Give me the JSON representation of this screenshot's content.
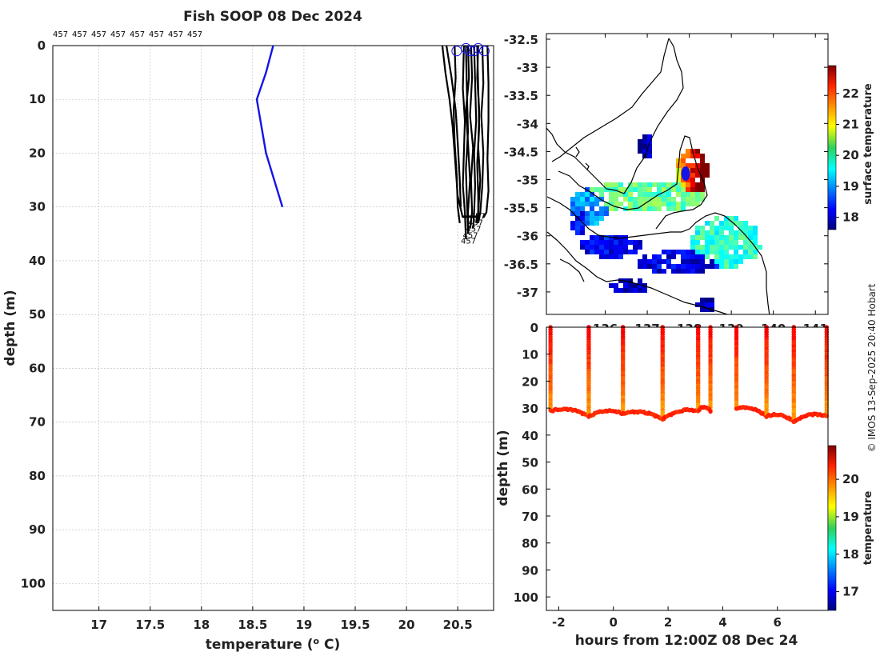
{
  "colors": {
    "profile_blue": "#1414e6",
    "profile_black": "#000000",
    "point_red": "#b81e0c"
  },
  "chart_data": [
    {
      "type": "line",
      "title": "Fish SOOP 08 Dec 2024",
      "xlabel": "temperature (",
      "xlabel_sup": "o",
      "xlabel_suffix": " C)",
      "ylabel": "depth (m)",
      "xlim": [
        16.55,
        20.85
      ],
      "ylim": [
        0,
        105
      ],
      "xticks": [
        "17",
        "17.5",
        "18",
        "18.5",
        "19",
        "19.5",
        "20",
        "20.5"
      ],
      "yticks": [
        "0",
        "10",
        "20",
        "30",
        "40",
        "50",
        "60",
        "70",
        "80",
        "90",
        "100"
      ],
      "top_labels": [
        "457",
        "457",
        "457",
        "457",
        "457",
        "457",
        "457",
        "457"
      ],
      "end_labels": [
        "457",
        "457",
        "457",
        "457",
        "457"
      ],
      "blue_profile": {
        "temperature": [
          18.7,
          18.63,
          18.54,
          18.63,
          18.79
        ],
        "depth": [
          0,
          5,
          10,
          20,
          30
        ]
      },
      "black_profiles": [
        {
          "temperature": [
            20.35,
            20.38,
            20.42,
            20.45,
            20.47,
            20.5,
            20.55
          ],
          "depth": [
            0,
            5,
            10,
            15,
            20,
            28,
            32
          ]
        },
        {
          "temperature": [
            20.47,
            20.48,
            20.46,
            20.47,
            20.49,
            20.5,
            20.52
          ],
          "depth": [
            0,
            6,
            12,
            18,
            24,
            30,
            33
          ]
        },
        {
          "temperature": [
            20.56,
            20.55,
            20.57,
            20.56,
            20.55,
            20.57,
            20.58
          ],
          "depth": [
            0,
            8,
            14,
            20,
            26,
            31,
            36
          ]
        },
        {
          "temperature": [
            20.6,
            20.61,
            20.58,
            20.6,
            20.62,
            20.6,
            20.6
          ],
          "depth": [
            0,
            6,
            12,
            18,
            25,
            31,
            35
          ]
        },
        {
          "temperature": [
            20.63,
            20.64,
            20.62,
            20.65,
            20.63,
            20.64,
            20.62
          ],
          "depth": [
            0,
            6,
            13,
            19,
            25,
            31,
            34
          ]
        },
        {
          "temperature": [
            20.66,
            20.67,
            20.68,
            20.66,
            20.67,
            20.66,
            20.65
          ],
          "depth": [
            0,
            7,
            14,
            20,
            26,
            31,
            34
          ]
        },
        {
          "temperature": [
            20.7,
            20.69,
            20.71,
            20.7,
            20.72,
            20.7,
            20.68
          ],
          "depth": [
            0,
            6,
            12,
            19,
            25,
            31,
            33
          ]
        },
        {
          "temperature": [
            20.74,
            20.75,
            20.73,
            20.75,
            20.74,
            20.72,
            20.7
          ],
          "depth": [
            0,
            7,
            13,
            20,
            26,
            31,
            33
          ]
        },
        {
          "temperature": [
            20.79,
            20.8,
            20.8,
            20.79,
            20.8,
            20.78,
            20.75
          ],
          "depth": [
            0,
            7,
            14,
            21,
            27,
            31,
            32
          ]
        },
        {
          "temperature": [
            20.39,
            20.44,
            20.48,
            20.5,
            20.52,
            20.53
          ],
          "depth": [
            0,
            6,
            12,
            18,
            25,
            30
          ]
        },
        {
          "temperature": [
            20.69,
            20.7,
            20.71,
            20.69,
            20.7,
            20.7
          ],
          "depth": [
            0,
            8,
            15,
            22,
            28,
            33
          ]
        },
        {
          "temperature": [
            20.58,
            20.59,
            20.6,
            20.58,
            20.59,
            20.6
          ],
          "depth": [
            0,
            9,
            16,
            23,
            29,
            34
          ]
        }
      ],
      "surface_circles": {
        "temperature": [
          20.49,
          20.58,
          20.62,
          20.66,
          20.7,
          20.76
        ],
        "depth": [
          1,
          0.5,
          1,
          1,
          0.5,
          1
        ]
      }
    },
    {
      "type": "heatmap",
      "yticks": [
        "-32.5",
        "-33",
        "-33.5",
        "-34",
        "-34.5",
        "-35",
        "-35.5",
        "-36",
        "-36.5",
        "-37"
      ],
      "xticks": [
        "136",
        "137",
        "138",
        "139",
        "140",
        "141"
      ],
      "ylim": [
        -37.4,
        -32.4
      ],
      "xlim": [
        134.6,
        141.3
      ],
      "colorbar": {
        "label": "surface temperature",
        "ticks": [
          "22",
          "21",
          "20",
          "19",
          "18"
        ],
        "range": [
          17.6,
          22.9
        ]
      }
    },
    {
      "type": "scatter",
      "xlabel": "hours from 12:00Z 08 Dec 24",
      "ylabel": "depth (m)",
      "xticks": [
        "-2",
        "0",
        "2",
        "4",
        "6"
      ],
      "yticks": [
        "0",
        "10",
        "20",
        "30",
        "40",
        "50",
        "60",
        "70",
        "80",
        "90",
        "100"
      ],
      "xlim": [
        -2.45,
        7.85
      ],
      "ylim": [
        0,
        105
      ],
      "casts": [
        {
          "t0": -2.3,
          "t1": -0.9,
          "bottom0": 31,
          "bottom1": 33
        },
        {
          "t0": -0.9,
          "t1": 0.35,
          "bottom0": 33,
          "bottom1": 32
        },
        {
          "t0": 0.35,
          "t1": 1.8,
          "bottom0": 32,
          "bottom1": 34
        },
        {
          "t0": 1.8,
          "t1": 3.1,
          "bottom0": 34,
          "bottom1": 31
        },
        {
          "t0": 3.1,
          "t1": 3.55,
          "bottom0": 31,
          "bottom1": 31
        },
        {
          "t0": 4.5,
          "t1": 5.6,
          "bottom0": 30,
          "bottom1": 33
        },
        {
          "t0": 5.6,
          "t1": 6.6,
          "bottom0": 33,
          "bottom1": 35
        },
        {
          "t0": 6.6,
          "t1": 7.8,
          "bottom0": 35,
          "bottom1": 33
        }
      ],
      "colorbar": {
        "label": "temperature",
        "ticks": [
          "20",
          "19",
          "18",
          "17"
        ],
        "range": [
          16.5,
          20.9
        ]
      }
    }
  ],
  "copyright": "© IMOS 13-Sep-2025 20:40 Hobart"
}
